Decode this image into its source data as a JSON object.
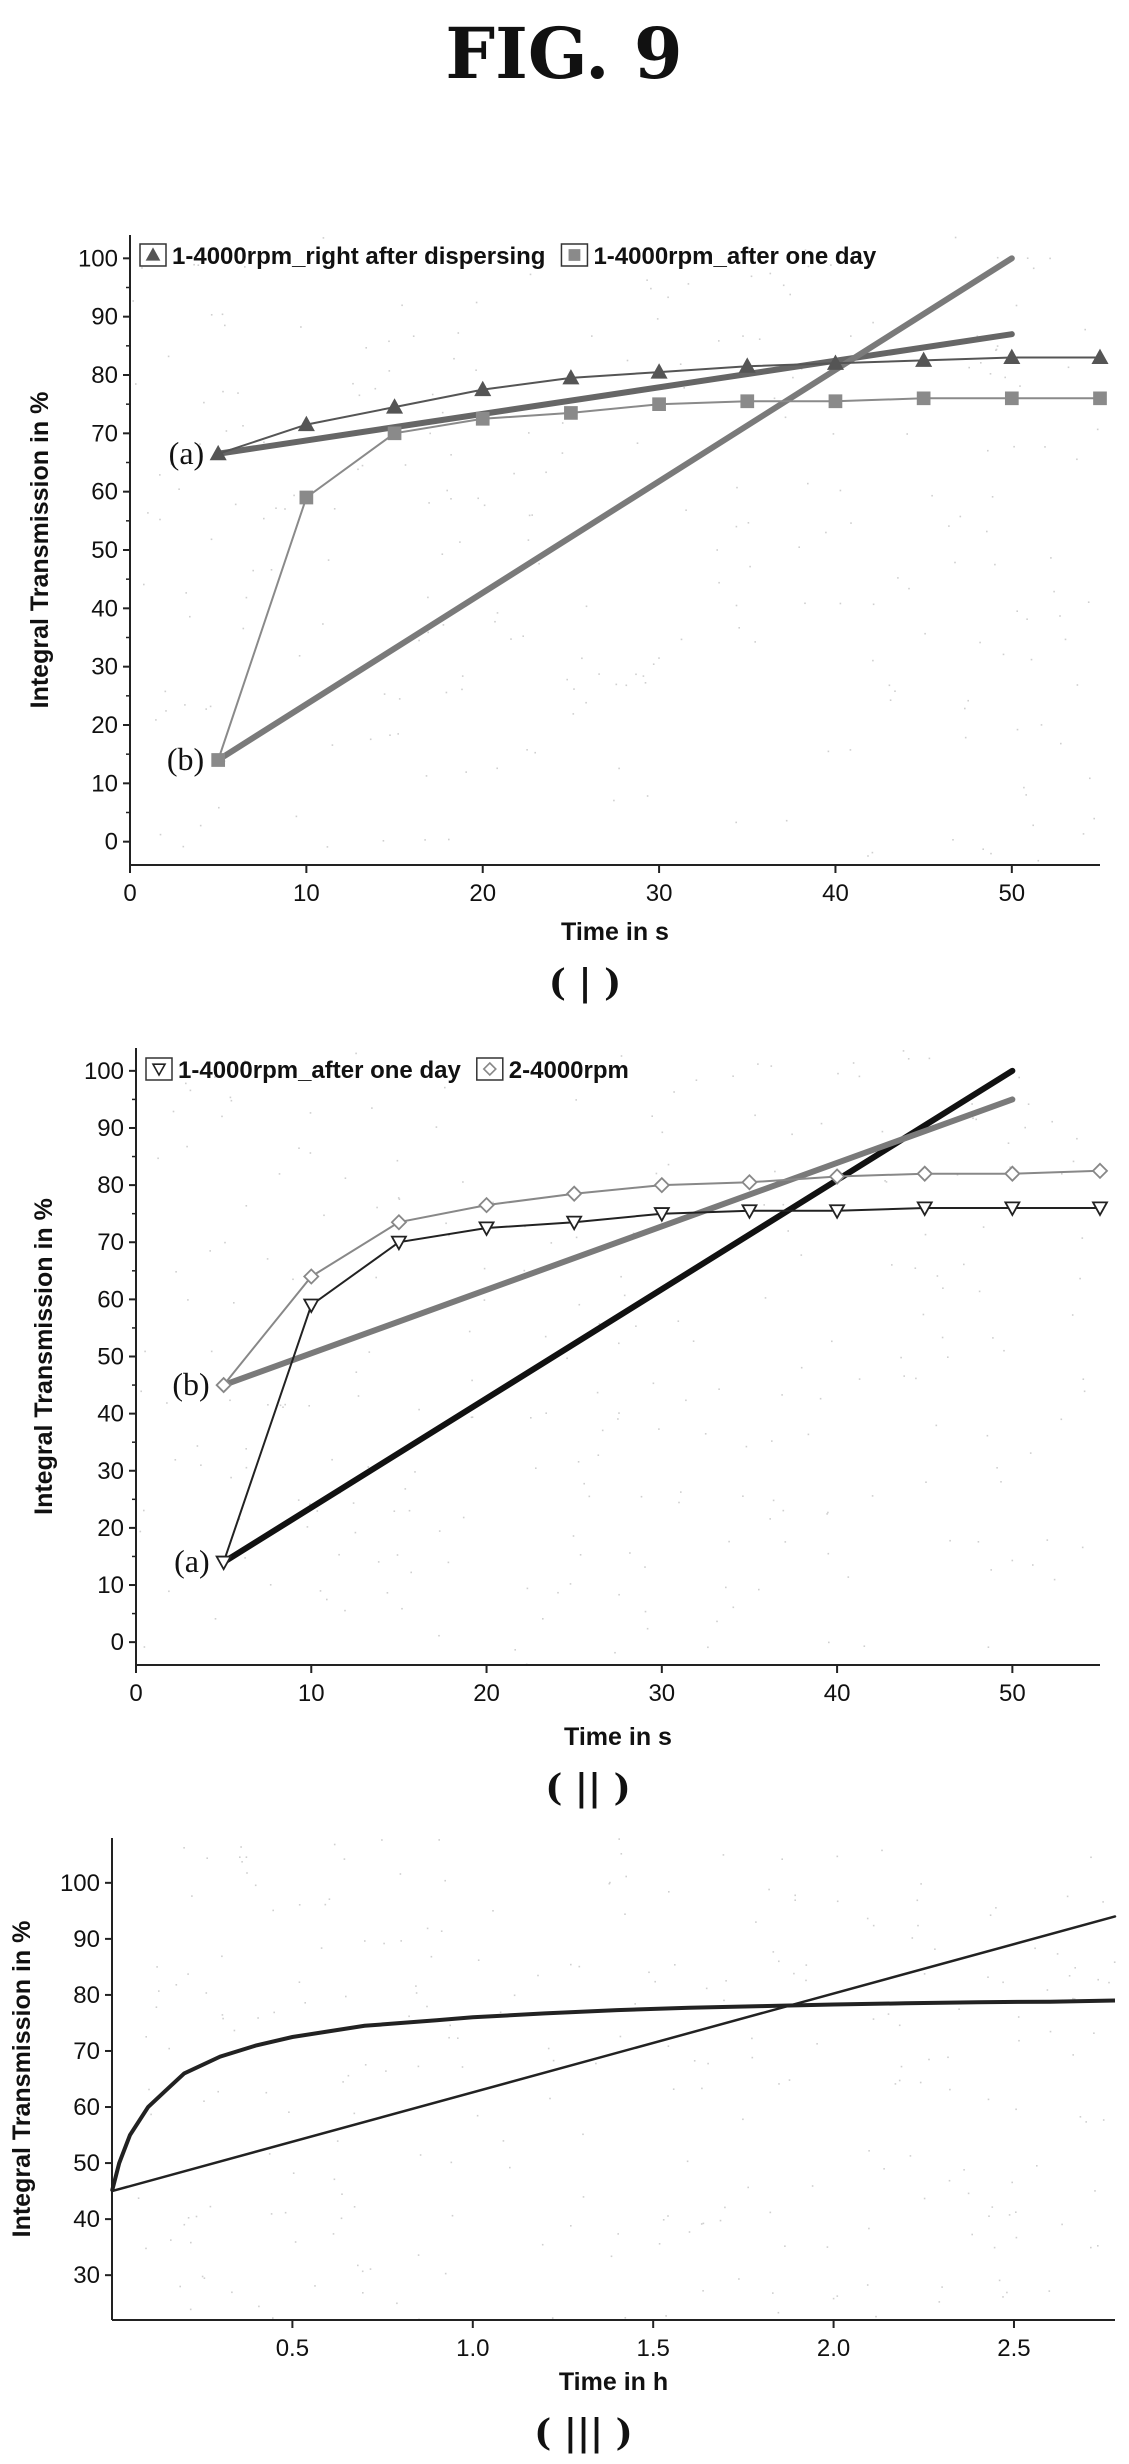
{
  "figure": {
    "title": "FIG. 9"
  },
  "chart_data": [
    {
      "type": "line",
      "panel_label": "( | )",
      "xlabel": "Time in s",
      "ylabel": "Integral Transmission in %",
      "xlim": [
        0,
        55
      ],
      "ylim": [
        -4,
        104
      ],
      "x_ticks": [
        "0",
        "10",
        "20",
        "30",
        "40",
        "50"
      ],
      "y_ticks": [
        "0",
        "10",
        "20",
        "30",
        "40",
        "50",
        "60",
        "70",
        "80",
        "90",
        "100"
      ],
      "legend_position": "top",
      "series": [
        {
          "name": "1-4000rpm_right after dispersing",
          "marker": "triangle-up",
          "color": "#555555",
          "x": [
            5,
            10,
            15,
            20,
            25,
            30,
            35,
            40,
            45,
            50,
            55
          ],
          "y": [
            66.5,
            71.5,
            74.5,
            77.5,
            79.5,
            80.5,
            81.5,
            82,
            82.5,
            83,
            83
          ]
        },
        {
          "name": "1-4000rpm_after one day",
          "marker": "square",
          "color": "#8a8a8a",
          "x": [
            5,
            10,
            15,
            20,
            25,
            30,
            35,
            40,
            45,
            50,
            55
          ],
          "y": [
            14,
            59,
            70,
            72.5,
            73.5,
            75,
            75.5,
            75.5,
            76,
            76,
            76
          ]
        }
      ],
      "reference_lines": [
        {
          "x": [
            5,
            50
          ],
          "y": [
            66.5,
            87
          ],
          "color": "#666666",
          "width": 6
        },
        {
          "x": [
            5,
            50
          ],
          "y": [
            14,
            100
          ],
          "color": "#7a7a7a",
          "width": 6
        }
      ],
      "annotations": [
        {
          "text": "(a)",
          "x": 5,
          "y": 66.5
        },
        {
          "text": "(b)",
          "x": 5,
          "y": 14
        }
      ]
    },
    {
      "type": "line",
      "panel_label": "( || )",
      "xlabel": "Time in s",
      "ylabel": "Integral Transmission in %",
      "xlim": [
        0,
        55
      ],
      "ylim": [
        -4,
        104
      ],
      "x_ticks": [
        "0",
        "10",
        "20",
        "30",
        "40",
        "50"
      ],
      "y_ticks": [
        "0",
        "10",
        "20",
        "30",
        "40",
        "50",
        "60",
        "70",
        "80",
        "90",
        "100"
      ],
      "legend_position": "top",
      "series": [
        {
          "name": "1-4000rpm_after one day",
          "marker": "triangle-down",
          "color": "#222222",
          "x": [
            5,
            10,
            15,
            20,
            25,
            30,
            35,
            40,
            45,
            50,
            55
          ],
          "y": [
            14,
            59,
            70,
            72.5,
            73.5,
            75,
            75.5,
            75.5,
            76,
            76,
            76
          ]
        },
        {
          "name": "2-4000rpm",
          "marker": "diamond",
          "color": "#888888",
          "x": [
            5,
            10,
            15,
            20,
            25,
            30,
            35,
            40,
            45,
            50,
            55
          ],
          "y": [
            45,
            64,
            73.5,
            76.5,
            78.5,
            80,
            80.5,
            81.5,
            82,
            82,
            82.5
          ]
        }
      ],
      "reference_lines": [
        {
          "x": [
            5,
            50
          ],
          "y": [
            14,
            100
          ],
          "color": "#111111",
          "width": 6
        },
        {
          "x": [
            5,
            50
          ],
          "y": [
            45,
            95
          ],
          "color": "#7a7a7a",
          "width": 6
        }
      ],
      "annotations": [
        {
          "text": "(b)",
          "x": 5,
          "y": 45
        },
        {
          "text": "(a)",
          "x": 5,
          "y": 14
        }
      ]
    },
    {
      "type": "line",
      "panel_label": "( ||| )",
      "xlabel": "Time in h",
      "ylabel": "Integral Transmission in %",
      "xlim": [
        0,
        2.78
      ],
      "ylim": [
        22,
        108
      ],
      "x_ticks": [
        "0.5",
        "1.0",
        "1.5",
        "2.0",
        "2.5"
      ],
      "y_ticks": [
        "30",
        "40",
        "50",
        "60",
        "70",
        "80",
        "90",
        "100"
      ],
      "series": [
        {
          "name": "",
          "marker": "none",
          "color": "#222222",
          "x": [
            0,
            0.02,
            0.05,
            0.1,
            0.15,
            0.2,
            0.3,
            0.4,
            0.5,
            0.6,
            0.7,
            0.8,
            0.9,
            1.0,
            1.2,
            1.4,
            1.6,
            1.8,
            2.0,
            2.2,
            2.4,
            2.6,
            2.78
          ],
          "y": [
            45,
            50,
            55,
            60,
            63,
            66,
            69,
            71,
            72.5,
            73.5,
            74.5,
            75,
            75.5,
            76,
            76.7,
            77.3,
            77.7,
            78,
            78.3,
            78.5,
            78.7,
            78.8,
            79
          ]
        }
      ],
      "reference_lines": [
        {
          "x": [
            0,
            2.78
          ],
          "y": [
            45,
            94
          ],
          "color": "#222222",
          "width": 2.5
        }
      ]
    }
  ]
}
